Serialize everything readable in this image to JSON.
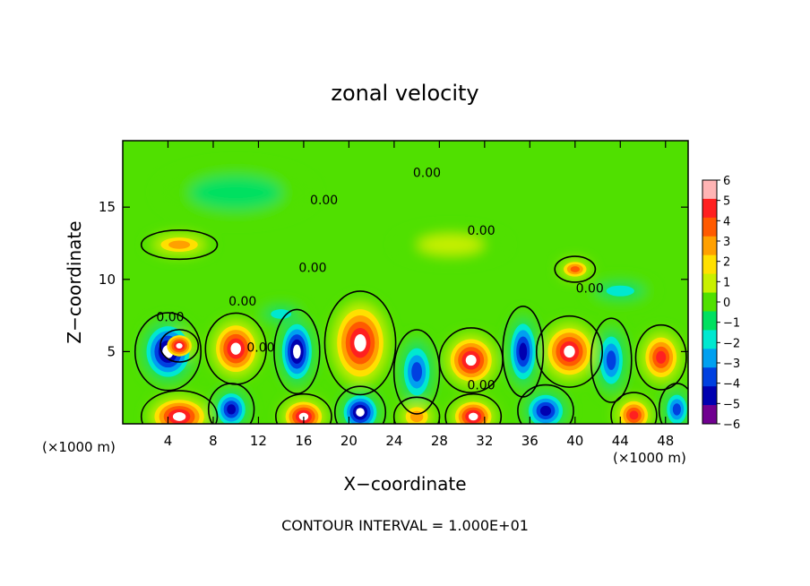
{
  "chart_data": {
    "type": "heatmap",
    "title": "zonal velocity",
    "xlabel": "X−coordinate",
    "ylabel": "Z−coordinate",
    "x_units": "(×1000 m)",
    "x_units_right": "(×1000 m)",
    "xlim": [
      0,
      50
    ],
    "ylim": [
      0,
      19.6
    ],
    "x_ticks": [
      4,
      8,
      12,
      16,
      20,
      24,
      28,
      32,
      36,
      40,
      44,
      48
    ],
    "y_ticks": [
      5,
      10,
      15
    ],
    "colorbar": {
      "levels": [
        6,
        5,
        4,
        3,
        2,
        1,
        0,
        -1,
        -2,
        -3,
        -4,
        -5,
        -6
      ],
      "labels": [
        "6",
        "5",
        "4",
        "3",
        "2",
        "1",
        "0",
        "−1",
        "−2",
        "−3",
        "−4",
        "−5",
        "−6"
      ],
      "colors": [
        "#ffb4b4",
        "#ff2020",
        "#ff5a00",
        "#ffa000",
        "#ffe000",
        "#c8f000",
        "#50e000",
        "#00e060",
        "#00e8d0",
        "#00a0f0",
        "#0040e0",
        "#0000b0",
        "#700090"
      ]
    },
    "contour_labels": [
      {
        "x": 26.9,
        "y": 17.1,
        "text": "0.00"
      },
      {
        "x": 17.8,
        "y": 15.2,
        "text": "0.00"
      },
      {
        "x": 31.7,
        "y": 13.1,
        "text": "0.00"
      },
      {
        "x": 16.8,
        "y": 10.5,
        "text": "0.00"
      },
      {
        "x": 41.3,
        "y": 9.1,
        "text": "0.00"
      },
      {
        "x": 10.6,
        "y": 8.2,
        "text": "0.00"
      },
      {
        "x": 4.2,
        "y": 7.1,
        "text": "0.00"
      },
      {
        "x": 12.2,
        "y": 5.0,
        "text": "0.00"
      },
      {
        "x": 31.7,
        "y": 2.4,
        "text": "0.00"
      }
    ],
    "cells": [
      {
        "x": 4.0,
        "y": 5.0,
        "v": -6,
        "rx": 2.6,
        "ry": 2.4
      },
      {
        "x": 5.0,
        "y": 5.4,
        "v": 6,
        "rx": 1.5,
        "ry": 1.0
      },
      {
        "x": 10.0,
        "y": 5.2,
        "v": 6,
        "rx": 2.4,
        "ry": 2.2
      },
      {
        "x": 15.4,
        "y": 5.0,
        "v": -6,
        "rx": 1.8,
        "ry": 2.6
      },
      {
        "x": 21.0,
        "y": 5.6,
        "v": 6,
        "rx": 2.8,
        "ry": 3.2
      },
      {
        "x": 26.0,
        "y": 3.6,
        "v": -4,
        "rx": 1.8,
        "ry": 2.6
      },
      {
        "x": 30.8,
        "y": 4.4,
        "v": 6,
        "rx": 2.5,
        "ry": 2.0
      },
      {
        "x": 35.4,
        "y": 5.0,
        "v": -5,
        "rx": 1.6,
        "ry": 2.8
      },
      {
        "x": 39.5,
        "y": 5.0,
        "v": 6,
        "rx": 2.6,
        "ry": 2.2
      },
      {
        "x": 43.2,
        "y": 4.4,
        "v": -4,
        "rx": 1.6,
        "ry": 2.6
      },
      {
        "x": 47.6,
        "y": 4.6,
        "v": 5,
        "rx": 2.0,
        "ry": 2.0
      },
      {
        "x": 5.0,
        "y": 0.5,
        "v": 6,
        "rx": 3.0,
        "ry": 1.6
      },
      {
        "x": 9.6,
        "y": 1.0,
        "v": -5,
        "rx": 1.8,
        "ry": 1.6
      },
      {
        "x": 16.0,
        "y": 0.5,
        "v": 6,
        "rx": 2.2,
        "ry": 1.4
      },
      {
        "x": 21.0,
        "y": 0.8,
        "v": -6,
        "rx": 2.0,
        "ry": 1.6
      },
      {
        "x": 26.0,
        "y": 0.5,
        "v": 3,
        "rx": 1.8,
        "ry": 1.2
      },
      {
        "x": 31.0,
        "y": 0.5,
        "v": 6,
        "rx": 2.2,
        "ry": 1.4
      },
      {
        "x": 37.4,
        "y": 0.9,
        "v": -5,
        "rx": 2.2,
        "ry": 1.6
      },
      {
        "x": 45.2,
        "y": 0.6,
        "v": 5,
        "rx": 1.8,
        "ry": 1.4
      },
      {
        "x": 49.0,
        "y": 1.0,
        "v": -4,
        "rx": 1.4,
        "ry": 1.6
      },
      {
        "x": 5.0,
        "y": 12.4,
        "v": 3,
        "rx": 3.0,
        "ry": 0.9
      },
      {
        "x": 40.0,
        "y": 10.7,
        "v": 4,
        "rx": 1.6,
        "ry": 0.8
      },
      {
        "x": 14.0,
        "y": 7.6,
        "v": -2,
        "rx": 2.2,
        "ry": 0.8
      },
      {
        "x": 29.0,
        "y": 12.4,
        "v": 1,
        "rx": 5.0,
        "ry": 1.2
      },
      {
        "x": 10.0,
        "y": 16.0,
        "v": -1,
        "rx": 7.0,
        "ry": 2.0
      },
      {
        "x": 44.0,
        "y": 9.2,
        "v": -2,
        "rx": 3.0,
        "ry": 0.9
      }
    ]
  },
  "footer": {
    "contour_interval": "CONTOUR INTERVAL =  1.000E+01"
  }
}
